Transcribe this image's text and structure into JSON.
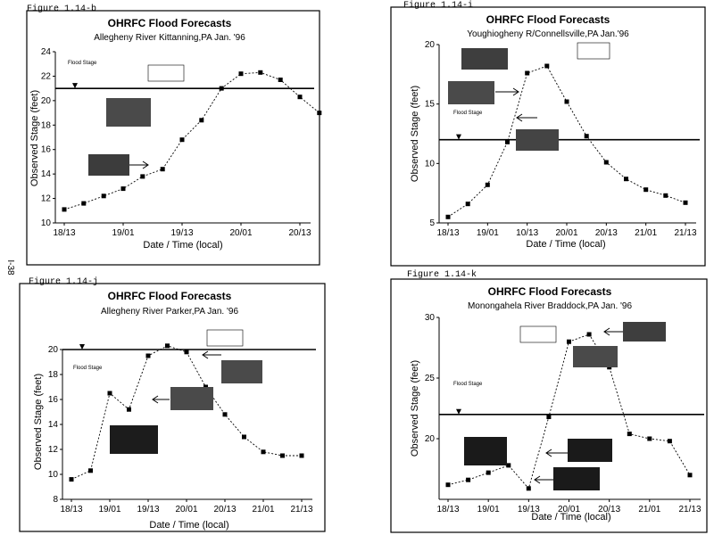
{
  "page_side_label": "I-38",
  "panels": [
    {
      "figure_label": "Figure 1.14-b",
      "chart_data": {
        "type": "line",
        "title": "OHRFC Flood Forecasts",
        "subtitle": "Allegheny River Kittanning,PA Jan. '96",
        "xlabel": "Date / Time (local)",
        "ylabel": "Observed Stage (feet)",
        "categories": [
          "18/13",
          "19/01",
          "19/13",
          "20/01",
          "20/13"
        ],
        "ylim": [
          10,
          24
        ],
        "yticks": [
          10,
          12,
          14,
          16,
          18,
          20,
          22,
          24
        ],
        "flood_stage": 21,
        "flood_stage_label": "Flood Stage",
        "series": [
          {
            "x": [
              0,
              0.33,
              0.67,
              1.0,
              1.33,
              1.67,
              2.0,
              2.33,
              2.67,
              3.0,
              3.33,
              3.67,
              4.0,
              4.33
            ],
            "y": [
              11.1,
              11.6,
              12.2,
              12.8,
              13.8,
              14.4,
              16.8,
              18.4,
              21.0,
              22.2,
              22.3,
              21.7,
              20.3,
              19.0
            ]
          }
        ]
      }
    },
    {
      "figure_label": "Figure 1.14-i",
      "chart_data": {
        "type": "line",
        "title": "OHRFC Flood Forecasts",
        "subtitle": "Youghiogheny R/Connellsville,PA Jan.'96",
        "xlabel": "Date / Time (local)",
        "ylabel": "Observed Stage (feet)",
        "categories": [
          "18/13",
          "19/01",
          "10/13",
          "20/01",
          "20/13",
          "21/01",
          "21/13"
        ],
        "ylim": [
          5,
          20
        ],
        "yticks": [
          5,
          10,
          15,
          20
        ],
        "flood_stage": 12,
        "flood_stage_label": "Flood Stage",
        "series": [
          {
            "x": [
              0,
              0.5,
              1.0,
              1.5,
              2.0,
              2.5,
              3.0,
              3.5,
              4.0,
              4.5,
              5.0,
              5.5,
              6.0
            ],
            "y": [
              5.5,
              6.6,
              8.2,
              11.8,
              17.6,
              18.2,
              15.2,
              12.3,
              10.1,
              8.7,
              7.8,
              7.3,
              6.7
            ]
          }
        ]
      }
    },
    {
      "figure_label": "Figure 1.14-j",
      "chart_data": {
        "type": "line",
        "title": "OHRFC Flood Forecasts",
        "subtitle": "Allegheny River   Parker,PA  Jan. '96",
        "xlabel": "Date / Time (local)",
        "ylabel": "Observed Stage (feet)",
        "categories": [
          "18/13",
          "19/01",
          "19/13",
          "20/01",
          "20/13",
          "21/01",
          "21/13"
        ],
        "ylim": [
          8,
          20
        ],
        "yticks": [
          8,
          10,
          12,
          14,
          16,
          18,
          20
        ],
        "flood_stage": 20,
        "flood_stage_label": "Flood Stage",
        "series": [
          {
            "x": [
              0,
              0.5,
              1.0,
              1.5,
              2.0,
              2.5,
              3.0,
              3.5,
              4.0,
              4.5,
              5.0,
              5.5,
              6.0
            ],
            "y": [
              9.6,
              10.3,
              16.5,
              15.2,
              19.5,
              20.3,
              19.8,
              17.0,
              14.8,
              13.0,
              11.8,
              11.5,
              11.5
            ]
          }
        ]
      }
    },
    {
      "figure_label": "Figure 1.14-k",
      "chart_data": {
        "type": "line",
        "title": "OHRFC Flood Forecasts",
        "subtitle": "Monongahela River Braddock,PA Jan. '96",
        "xlabel": "Date / Time (local)",
        "ylabel": "Observed Stage (feet)",
        "categories": [
          "18/13",
          "19/01",
          "19/13",
          "20/01",
          "20/13",
          "21/01",
          "21/13"
        ],
        "ylim": [
          15,
          30
        ],
        "yticks": [
          20,
          25,
          30
        ],
        "flood_stage": 22,
        "flood_stage_label": "Flood Stage",
        "series": [
          {
            "x": [
              0,
              0.5,
              1.0,
              1.5,
              2.0,
              2.5,
              3.0,
              3.5,
              4.0,
              4.5,
              5.0,
              5.5,
              6.0
            ],
            "y": [
              16.2,
              16.6,
              17.2,
              17.8,
              15.9,
              21.8,
              28.0,
              28.6,
              25.9,
              20.4,
              20.0,
              19.8,
              17.0
            ]
          }
        ]
      }
    }
  ]
}
